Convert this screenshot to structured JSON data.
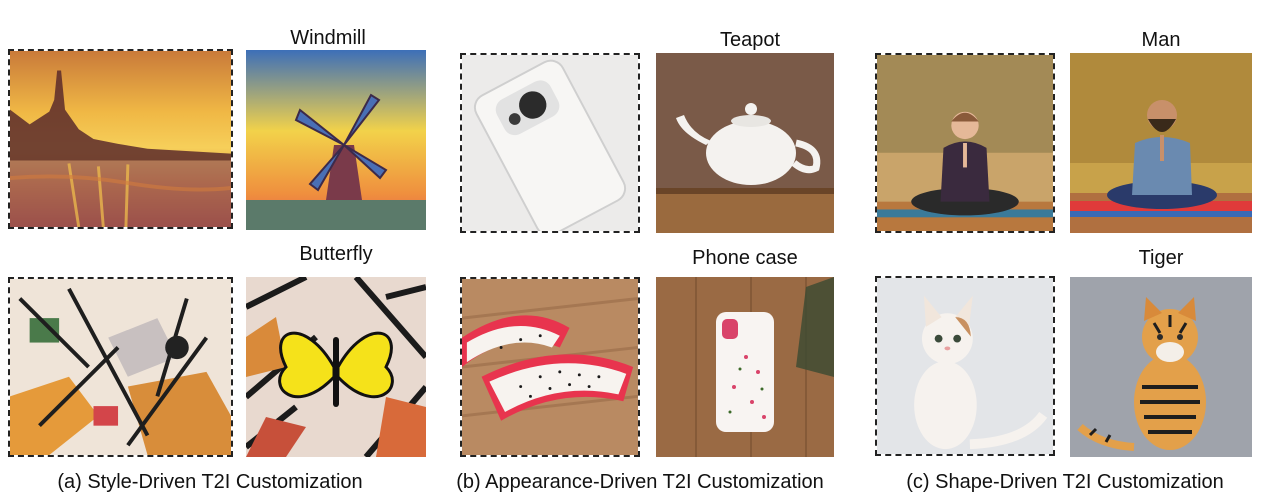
{
  "panels": {
    "style": {
      "caption": "(a) Style-Driven T2I Customization",
      "top_label": "Windmill",
      "bottom_label": "Butterfly"
    },
    "appearance": {
      "caption": "(b) Appearance-Driven T2I Customization",
      "top_label": "Teapot",
      "bottom_label": "Phone case"
    },
    "shape": {
      "caption": "(c) Shape-Driven T2I Customization",
      "top_label": "Man",
      "bottom_label": "Tiger"
    }
  }
}
